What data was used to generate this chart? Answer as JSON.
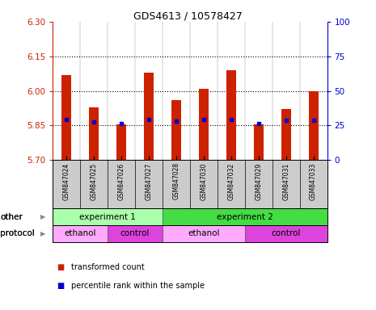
{
  "title": "GDS4613 / 10578427",
  "samples": [
    "GSM847024",
    "GSM847025",
    "GSM847026",
    "GSM847027",
    "GSM847028",
    "GSM847030",
    "GSM847032",
    "GSM847029",
    "GSM847031",
    "GSM847033"
  ],
  "bar_values": [
    6.07,
    5.93,
    5.855,
    6.08,
    5.96,
    6.01,
    6.09,
    5.855,
    5.92,
    6.0
  ],
  "bar_base": 5.7,
  "percentile_values": [
    5.875,
    5.865,
    5.86,
    5.875,
    5.87,
    5.875,
    5.875,
    5.86,
    5.872,
    5.873
  ],
  "ylim": [
    5.7,
    6.3
  ],
  "yticks_left": [
    5.7,
    5.85,
    6.0,
    6.15,
    6.3
  ],
  "yticks_right": [
    0,
    25,
    50,
    75,
    100
  ],
  "hlines": [
    5.85,
    6.0,
    6.15
  ],
  "bar_color": "#CC2200",
  "percentile_color": "#0000CC",
  "background_color": "#FFFFFF",
  "plot_bg_color": "#FFFFFF",
  "other_groups": [
    {
      "label": "experiment 1",
      "start": 0,
      "end": 4,
      "color": "#AAFFAA"
    },
    {
      "label": "experiment 2",
      "start": 4,
      "end": 10,
      "color": "#44DD44"
    }
  ],
  "protocol_groups": [
    {
      "label": "ethanol",
      "start": 0,
      "end": 2,
      "color": "#FFAAFF"
    },
    {
      "label": "control",
      "start": 2,
      "end": 4,
      "color": "#DD44DD"
    },
    {
      "label": "ethanol",
      "start": 4,
      "end": 7,
      "color": "#FFAAFF"
    },
    {
      "label": "control",
      "start": 7,
      "end": 10,
      "color": "#DD44DD"
    }
  ],
  "legend_items": [
    {
      "label": "transformed count",
      "color": "#CC2200",
      "marker": "s"
    },
    {
      "label": "percentile rank within the sample",
      "color": "#0000CC",
      "marker": "s"
    }
  ],
  "row_labels": [
    "other",
    "protocol"
  ],
  "left_axis_color": "#CC2200",
  "right_axis_color": "#0000CC",
  "sample_bg_color": "#CCCCCC",
  "bar_width": 0.35
}
